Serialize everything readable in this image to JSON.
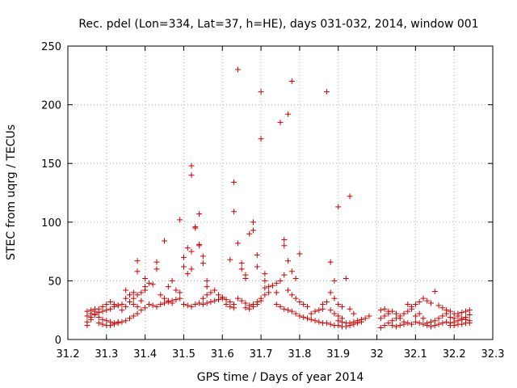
{
  "chart_data": {
    "type": "scatter",
    "title": "Rec. pdel (Lon=334, Lat=37, h=HE), days 031-032, 2014, window 001",
    "xlabel": "GPS time / Days of year 2014",
    "ylabel": "STEC from uqrg / TECUs",
    "xlim": [
      31.2,
      32.3
    ],
    "ylim": [
      0,
      250
    ],
    "xticks": [
      "31.2",
      "31.3",
      "31.4",
      "31.5",
      "31.6",
      "31.7",
      "31.8",
      "31.9",
      "32",
      "32.1",
      "32.2",
      "32.3"
    ],
    "yticks": [
      "0",
      "50",
      "100",
      "150",
      "200",
      "250"
    ],
    "grid": true,
    "marker": "+",
    "color": "#cc0000",
    "series": [
      {
        "name": "STEC",
        "points": [
          [
            31.25,
            12
          ],
          [
            31.26,
            17
          ],
          [
            31.27,
            22
          ],
          [
            31.28,
            26
          ],
          [
            31.29,
            28
          ],
          [
            31.3,
            30
          ],
          [
            31.31,
            32
          ],
          [
            31.32,
            30
          ],
          [
            31.33,
            29
          ],
          [
            31.25,
            15
          ],
          [
            31.26,
            19
          ],
          [
            31.27,
            21
          ],
          [
            31.28,
            23
          ],
          [
            31.29,
            24
          ],
          [
            31.3,
            25
          ],
          [
            31.31,
            26
          ],
          [
            31.32,
            28
          ],
          [
            31.33,
            29
          ],
          [
            31.25,
            20
          ],
          [
            31.26,
            22
          ],
          [
            31.27,
            24
          ],
          [
            31.28,
            19
          ],
          [
            31.29,
            17
          ],
          [
            31.3,
            16
          ],
          [
            31.31,
            15
          ],
          [
            31.32,
            14
          ],
          [
            31.33,
            15
          ],
          [
            31.25,
            24
          ],
          [
            31.26,
            25
          ],
          [
            31.27,
            26
          ],
          [
            31.28,
            14
          ],
          [
            31.29,
            13
          ],
          [
            31.3,
            12
          ],
          [
            31.31,
            12
          ],
          [
            31.32,
            13
          ],
          [
            31.33,
            14
          ],
          [
            31.34,
            15
          ],
          [
            31.35,
            16
          ],
          [
            31.36,
            18
          ],
          [
            31.37,
            20
          ],
          [
            31.38,
            22
          ],
          [
            31.39,
            25
          ],
          [
            31.4,
            27
          ],
          [
            31.34,
            25
          ],
          [
            31.35,
            28
          ],
          [
            31.36,
            32
          ],
          [
            31.37,
            35
          ],
          [
            31.38,
            38
          ],
          [
            31.39,
            40
          ],
          [
            31.4,
            42
          ],
          [
            31.34,
            30
          ],
          [
            31.35,
            35
          ],
          [
            31.36,
            38
          ],
          [
            31.37,
            30
          ],
          [
            31.38,
            28
          ],
          [
            31.39,
            33
          ],
          [
            31.4,
            45
          ],
          [
            31.35,
            42
          ],
          [
            31.37,
            40
          ],
          [
            31.38,
            58
          ],
          [
            31.38,
            67
          ],
          [
            31.4,
            52
          ],
          [
            31.41,
            48
          ],
          [
            31.42,
            47
          ],
          [
            31.43,
            60
          ],
          [
            31.43,
            66
          ],
          [
            31.45,
            84
          ],
          [
            31.44,
            38
          ],
          [
            31.45,
            35
          ],
          [
            31.46,
            33
          ],
          [
            31.47,
            31
          ],
          [
            31.41,
            30
          ],
          [
            31.42,
            29
          ],
          [
            31.43,
            28
          ],
          [
            31.44,
            30
          ],
          [
            31.45,
            31
          ],
          [
            31.46,
            32
          ],
          [
            31.47,
            33
          ],
          [
            31.48,
            34
          ],
          [
            31.49,
            35
          ],
          [
            31.46,
            45
          ],
          [
            31.47,
            50
          ],
          [
            31.48,
            42
          ],
          [
            31.49,
            40
          ],
          [
            31.5,
            30
          ],
          [
            31.51,
            29
          ],
          [
            31.52,
            28
          ],
          [
            31.53,
            30
          ],
          [
            31.54,
            31
          ],
          [
            31.49,
            102
          ],
          [
            31.5,
            62
          ],
          [
            31.5,
            70
          ],
          [
            31.51,
            78
          ],
          [
            31.51,
            56
          ],
          [
            31.52,
            60
          ],
          [
            31.52,
            75
          ],
          [
            31.53,
            96
          ],
          [
            31.53,
            95
          ],
          [
            31.52,
            148
          ],
          [
            31.52,
            140
          ],
          [
            31.54,
            107
          ],
          [
            31.54,
            80
          ],
          [
            31.54,
            81
          ],
          [
            31.55,
            71
          ],
          [
            31.55,
            65
          ],
          [
            31.56,
            50
          ],
          [
            31.56,
            45
          ],
          [
            31.55,
            35
          ],
          [
            31.56,
            38
          ],
          [
            31.57,
            40
          ],
          [
            31.58,
            42
          ],
          [
            31.59,
            38
          ],
          [
            31.6,
            36
          ],
          [
            31.61,
            34
          ],
          [
            31.62,
            32
          ],
          [
            31.63,
            30
          ],
          [
            31.55,
            30
          ],
          [
            31.56,
            31
          ],
          [
            31.57,
            32
          ],
          [
            31.58,
            33
          ],
          [
            31.59,
            34
          ],
          [
            31.6,
            35
          ],
          [
            31.61,
            30
          ],
          [
            31.62,
            28
          ],
          [
            31.63,
            27
          ],
          [
            31.62,
            68
          ],
          [
            31.63,
            134
          ],
          [
            31.63,
            109
          ],
          [
            31.64,
            82
          ],
          [
            31.64,
            230
          ],
          [
            31.65,
            65
          ],
          [
            31.65,
            60
          ],
          [
            31.66,
            52
          ],
          [
            31.66,
            55
          ],
          [
            31.67,
            90
          ],
          [
            31.68,
            93
          ],
          [
            31.68,
            100
          ],
          [
            31.69,
            72
          ],
          [
            31.69,
            62
          ],
          [
            31.7,
            211
          ],
          [
            31.7,
            171
          ],
          [
            31.71,
            50
          ],
          [
            31.71,
            56
          ],
          [
            31.64,
            35
          ],
          [
            31.65,
            33
          ],
          [
            31.66,
            31
          ],
          [
            31.67,
            29
          ],
          [
            31.68,
            30
          ],
          [
            31.69,
            32
          ],
          [
            31.7,
            35
          ],
          [
            31.71,
            38
          ],
          [
            31.72,
            40
          ],
          [
            31.66,
            27
          ],
          [
            31.67,
            26
          ],
          [
            31.68,
            28
          ],
          [
            31.69,
            30
          ],
          [
            31.7,
            33
          ],
          [
            31.71,
            44
          ],
          [
            31.72,
            45
          ],
          [
            31.73,
            46
          ],
          [
            31.74,
            48
          ],
          [
            31.75,
            185
          ],
          [
            31.76,
            85
          ],
          [
            31.76,
            80
          ],
          [
            31.77,
            192
          ],
          [
            31.77,
            67
          ],
          [
            31.78,
            220
          ],
          [
            31.78,
            58
          ],
          [
            31.79,
            52
          ],
          [
            31.8,
            73
          ],
          [
            31.74,
            40
          ],
          [
            31.75,
            50
          ],
          [
            31.76,
            55
          ],
          [
            31.77,
            42
          ],
          [
            31.78,
            38
          ],
          [
            31.79,
            35
          ],
          [
            31.8,
            32
          ],
          [
            31.81,
            30
          ],
          [
            31.82,
            28
          ],
          [
            31.74,
            30
          ],
          [
            31.75,
            28
          ],
          [
            31.76,
            26
          ],
          [
            31.77,
            25
          ],
          [
            31.78,
            24
          ],
          [
            31.79,
            22
          ],
          [
            31.8,
            20
          ],
          [
            31.81,
            19
          ],
          [
            31.82,
            18
          ],
          [
            31.83,
            22
          ],
          [
            31.84,
            24
          ],
          [
            31.85,
            25
          ],
          [
            31.86,
            26
          ],
          [
            31.87,
            211
          ],
          [
            31.88,
            66
          ],
          [
            31.89,
            50
          ],
          [
            31.9,
            113
          ],
          [
            31.93,
            122
          ],
          [
            31.83,
            17
          ],
          [
            31.84,
            16
          ],
          [
            31.85,
            15
          ],
          [
            31.86,
            14
          ],
          [
            31.87,
            14
          ],
          [
            31.88,
            40
          ],
          [
            31.89,
            35
          ],
          [
            31.9,
            30
          ],
          [
            31.91,
            28
          ],
          [
            31.86,
            30
          ],
          [
            31.87,
            32
          ],
          [
            31.88,
            25
          ],
          [
            31.89,
            22
          ],
          [
            31.9,
            20
          ],
          [
            31.91,
            18
          ],
          [
            31.92,
            52
          ],
          [
            31.93,
            26
          ],
          [
            31.94,
            22
          ],
          [
            31.88,
            13
          ],
          [
            31.89,
            12
          ],
          [
            31.9,
            12
          ],
          [
            31.91,
            11
          ],
          [
            31.92,
            11
          ],
          [
            31.93,
            12
          ],
          [
            31.94,
            13
          ],
          [
            31.95,
            14
          ],
          [
            31.96,
            15
          ],
          [
            31.9,
            16
          ],
          [
            31.91,
            15
          ],
          [
            31.92,
            14
          ],
          [
            31.93,
            14
          ],
          [
            31.94,
            15
          ],
          [
            31.95,
            16
          ],
          [
            31.96,
            17
          ],
          [
            31.97,
            18
          ],
          [
            31.98,
            20
          ],
          [
            32.01,
            10
          ],
          [
            32.02,
            12
          ],
          [
            32.03,
            14
          ],
          [
            32.04,
            16
          ],
          [
            32.05,
            18
          ],
          [
            32.06,
            20
          ],
          [
            32.07,
            22
          ],
          [
            32.08,
            24
          ],
          [
            32.09,
            26
          ],
          [
            32.01,
            18
          ],
          [
            32.02,
            20
          ],
          [
            32.03,
            22
          ],
          [
            32.04,
            24
          ],
          [
            32.05,
            22
          ],
          [
            32.06,
            18
          ],
          [
            32.07,
            15
          ],
          [
            32.08,
            14
          ],
          [
            32.09,
            13
          ],
          [
            32.01,
            25
          ],
          [
            32.02,
            26
          ],
          [
            32.03,
            24
          ],
          [
            32.04,
            12
          ],
          [
            32.05,
            11
          ],
          [
            32.06,
            12
          ],
          [
            32.07,
            13
          ],
          [
            32.08,
            30
          ],
          [
            32.09,
            28
          ],
          [
            32.1,
            30
          ],
          [
            32.11,
            32
          ],
          [
            32.12,
            35
          ],
          [
            32.13,
            33
          ],
          [
            32.14,
            31
          ],
          [
            32.15,
            41
          ],
          [
            32.16,
            29
          ],
          [
            32.17,
            27
          ],
          [
            32.18,
            25
          ],
          [
            32.1,
            15
          ],
          [
            32.11,
            14
          ],
          [
            32.12,
            13
          ],
          [
            32.13,
            14
          ],
          [
            32.14,
            15
          ],
          [
            32.15,
            16
          ],
          [
            32.16,
            18
          ],
          [
            32.17,
            20
          ],
          [
            32.18,
            22
          ],
          [
            32.1,
            20
          ],
          [
            32.11,
            22
          ],
          [
            32.12,
            18
          ],
          [
            32.13,
            12
          ],
          [
            32.14,
            11
          ],
          [
            32.15,
            12
          ],
          [
            32.16,
            13
          ],
          [
            32.17,
            14
          ],
          [
            32.18,
            15
          ],
          [
            32.19,
            24
          ],
          [
            32.2,
            22
          ],
          [
            32.21,
            20
          ],
          [
            32.22,
            18
          ],
          [
            32.23,
            17
          ],
          [
            32.24,
            16
          ],
          [
            32.19,
            14
          ],
          [
            32.2,
            15
          ],
          [
            32.21,
            16
          ],
          [
            32.22,
            17
          ],
          [
            32.23,
            19
          ],
          [
            32.24,
            21
          ],
          [
            32.19,
            19
          ],
          [
            32.2,
            18
          ],
          [
            32.21,
            22
          ],
          [
            32.22,
            23
          ],
          [
            32.23,
            24
          ],
          [
            32.24,
            25
          ],
          [
            32.19,
            12
          ],
          [
            32.2,
            12
          ],
          [
            32.21,
            13
          ],
          [
            32.22,
            13
          ],
          [
            32.23,
            14
          ],
          [
            32.24,
            14
          ]
        ]
      }
    ]
  }
}
